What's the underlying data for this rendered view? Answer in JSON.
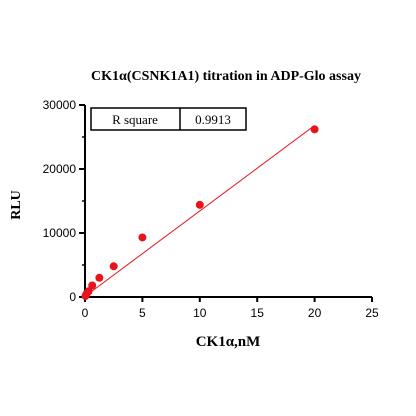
{
  "chart_data": {
    "type": "scatter",
    "title": "CK1α(CSNK1A1) titration in ADP-Glo assay",
    "xlabel": "CK1α,nM",
    "ylabel": "RLU",
    "xlim": [
      0,
      25
    ],
    "ylim": [
      0,
      30000
    ],
    "x_ticks": [
      "0",
      "5",
      "10",
      "15",
      "20",
      "25"
    ],
    "y_ticks": [
      "0",
      "10000",
      "20000",
      "30000"
    ],
    "x_tick_values": [
      0,
      5,
      10,
      15,
      20,
      25
    ],
    "y_tick_values": [
      0,
      10000,
      20000,
      30000
    ],
    "series": [
      {
        "color": "#e8141b",
        "points": [
          {
            "x": 0.04,
            "y": 150
          },
          {
            "x": 0.08,
            "y": 300
          },
          {
            "x": 0.16,
            "y": 550
          },
          {
            "x": 0.31,
            "y": 900
          },
          {
            "x": 0.63,
            "y": 1800
          },
          {
            "x": 1.25,
            "y": 3000
          },
          {
            "x": 2.5,
            "y": 4800
          },
          {
            "x": 5,
            "y": 9300
          },
          {
            "x": 10,
            "y": 14400
          },
          {
            "x": 20,
            "y": 26200
          }
        ]
      }
    ],
    "fit_line": {
      "color": "#e8141b",
      "x": [
        0,
        20
      ],
      "y": [
        100,
        26800
      ]
    },
    "stats": {
      "label": "R square",
      "value": "0.9913"
    }
  }
}
